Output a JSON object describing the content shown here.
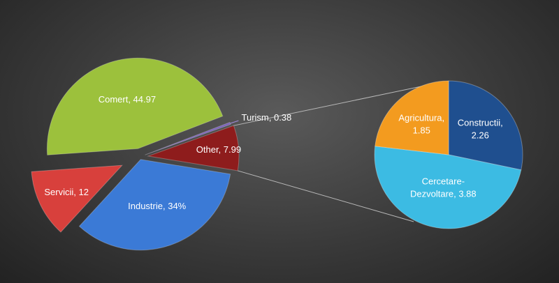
{
  "chart_data": {
    "type": "pie-of-pie",
    "labels": [
      "Comert, 44.97",
      "Turism, 0.38",
      "Other, 7.99",
      "Industrie, 34%",
      "Servicii, 12"
    ],
    "values": [
      44.97,
      0.38,
      7.99,
      34,
      12
    ],
    "colors": [
      "#9cc13c",
      "#7b63b8",
      "#8e1c1c",
      "#3b7ad6",
      "#d8403c"
    ],
    "secondary": {
      "labels": [
        "Constructii, 2.26",
        "Cercetare-Dezvoltare, 3.88",
        "Agricultura, 1.85"
      ],
      "values": [
        2.26,
        3.88,
        1.85
      ],
      "colors": [
        "#1f4f8f",
        "#3cbbe3",
        "#f39b1f"
      ]
    }
  }
}
